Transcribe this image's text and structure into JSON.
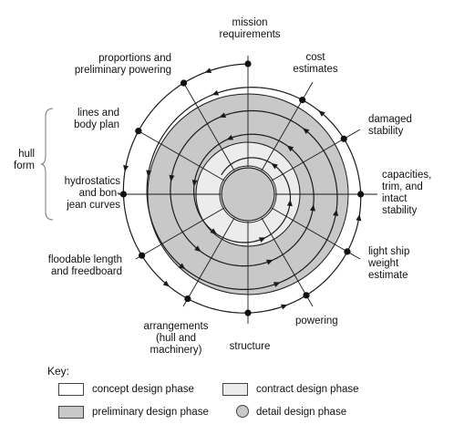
{
  "labels": {
    "mission": [
      "mission",
      "requirements"
    ],
    "cost": [
      "cost",
      "estimates"
    ],
    "damaged": [
      "damaged",
      "stability"
    ],
    "capacities": [
      "capacities,",
      "trim, and",
      "intact",
      "stability"
    ],
    "lightship": [
      "light ship",
      "weight",
      "estimate"
    ],
    "powering": [
      "powering"
    ],
    "structure": [
      "structure"
    ],
    "arrangements": [
      "arrangements",
      "(hull and",
      "machinery)"
    ],
    "floodable": [
      "floodable length",
      "and freedboard"
    ],
    "hydrostatics": [
      "hydrostatics",
      "and bon-",
      "jean curves"
    ],
    "lines": [
      "lines and",
      "body plan"
    ],
    "proportions": [
      "proportions and",
      "preliminary powering"
    ],
    "hullform": [
      "hull",
      "form"
    ]
  },
  "key": {
    "title": "Key:",
    "concept": "concept design phase",
    "contract": "contract design phase",
    "preliminary": "preliminary design phase",
    "detail": "detail design phase"
  },
  "colors": {
    "preliminary": "#c8c8c8",
    "contract": "#ececec",
    "concept": "#ffffff",
    "detail": "#c8c8c8",
    "line": "#1a1a1a"
  }
}
